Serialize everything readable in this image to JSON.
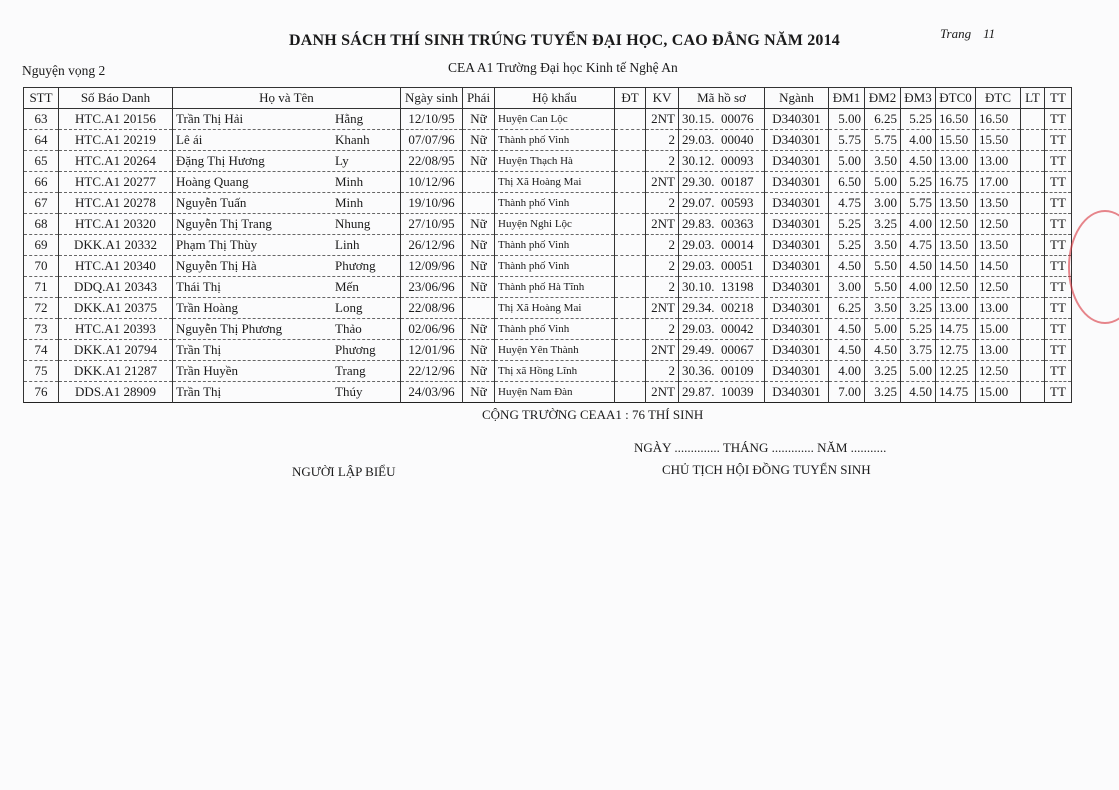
{
  "header": {
    "title": "DANH SÁCH THÍ SINH TRÚNG TUYỂN ĐẠI HỌC, CAO ĐẲNG NĂM 2014",
    "page_label": "Trang",
    "page_number": "11",
    "wish": "Nguyện vọng 2",
    "school": "CEA A1 Trường Đại học Kinh tế Nghệ An"
  },
  "table": {
    "columns": [
      "STT",
      "Số Báo Danh",
      "Họ và Tên",
      "Ngày sinh",
      "Phái",
      "Hộ khẩu",
      "ĐT",
      "KV",
      "Mã hồ sơ",
      "Ngành",
      "ĐM1",
      "ĐM2",
      "ĐM3",
      "ĐTC0",
      "ĐTC",
      "LT",
      "TT"
    ],
    "rows": [
      [
        "63",
        "HTC.A1 20156",
        "Trần Thị Hải",
        "Hằng",
        "12/10/95",
        "Nữ",
        "Huyện Can Lộc",
        "",
        "2NT",
        "30.15.  00076",
        "D340301",
        "5.00",
        "6.25",
        "5.25",
        "16.50",
        "16.50",
        "",
        "TT"
      ],
      [
        "64",
        "HTC.A1 20219",
        "Lê ái",
        "Khanh",
        "07/07/96",
        "Nữ",
        "Thành phố Vinh",
        "",
        "2",
        "29.03.  00040",
        "D340301",
        "5.75",
        "5.75",
        "4.00",
        "15.50",
        "15.50",
        "",
        "TT"
      ],
      [
        "65",
        "HTC.A1 20264",
        "Đặng Thị Hương",
        "Ly",
        "22/08/95",
        "Nữ",
        "Huyện Thạch Hà",
        "",
        "2",
        "30.12.  00093",
        "D340301",
        "5.00",
        "3.50",
        "4.50",
        "13.00",
        "13.00",
        "",
        "TT"
      ],
      [
        "66",
        "HTC.A1 20277",
        "Hoàng Quang",
        "Minh",
        "10/12/96",
        "",
        "Thị Xã Hoàng Mai",
        "",
        "2NT",
        "29.30.  00187",
        "D340301",
        "6.50",
        "5.00",
        "5.25",
        "16.75",
        "17.00",
        "",
        "TT"
      ],
      [
        "67",
        "HTC.A1 20278",
        "Nguyễn Tuấn",
        "Minh",
        "19/10/96",
        "",
        "Thành phố Vinh",
        "",
        "2",
        "29.07.  00593",
        "D340301",
        "4.75",
        "3.00",
        "5.75",
        "13.50",
        "13.50",
        "",
        "TT"
      ],
      [
        "68",
        "HTC.A1 20320",
        "Nguyễn Thị Trang",
        "Nhung",
        "27/10/95",
        "Nữ",
        "Huyện Nghi Lộc",
        "",
        "2NT",
        "29.83.  00363",
        "D340301",
        "5.25",
        "3.25",
        "4.00",
        "12.50",
        "12.50",
        "",
        "TT"
      ],
      [
        "69",
        "DKK.A1 20332",
        "Phạm Thị Thùy",
        "Linh",
        "26/12/96",
        "Nữ",
        "Thành phố Vinh",
        "",
        "2",
        "29.03.  00014",
        "D340301",
        "5.25",
        "3.50",
        "4.75",
        "13.50",
        "13.50",
        "",
        "TT"
      ],
      [
        "70",
        "HTC.A1 20340",
        "Nguyễn Thị Hà",
        "Phương",
        "12/09/96",
        "Nữ",
        "Thành phố Vinh",
        "",
        "2",
        "29.03.  00051",
        "D340301",
        "4.50",
        "5.50",
        "4.50",
        "14.50",
        "14.50",
        "",
        "TT"
      ],
      [
        "71",
        "DDQ.A1 20343",
        "Thái Thị",
        "Mến",
        "23/06/96",
        "Nữ",
        "Thành phố Hà Tĩnh",
        "",
        "2",
        "30.10.  13198",
        "D340301",
        "3.00",
        "5.50",
        "4.00",
        "12.50",
        "12.50",
        "",
        "TT"
      ],
      [
        "72",
        "DKK.A1 20375",
        "Trần Hoàng",
        "Long",
        "22/08/96",
        "",
        "Thị Xã Hoàng Mai",
        "",
        "2NT",
        "29.34.  00218",
        "D340301",
        "6.25",
        "3.50",
        "3.25",
        "13.00",
        "13.00",
        "",
        "TT"
      ],
      [
        "73",
        "HTC.A1 20393",
        "Nguyễn Thị Phương",
        "Thảo",
        "02/06/96",
        "Nữ",
        "Thành phố Vinh",
        "",
        "2",
        "29.03.  00042",
        "D340301",
        "4.50",
        "5.00",
        "5.25",
        "14.75",
        "15.00",
        "",
        "TT"
      ],
      [
        "74",
        "DKK.A1 20794",
        "Trần Thị",
        "Phương",
        "12/01/96",
        "Nữ",
        "Huyện Yên Thành",
        "",
        "2NT",
        "29.49.  00067",
        "D340301",
        "4.50",
        "4.50",
        "3.75",
        "12.75",
        "13.00",
        "",
        "TT"
      ],
      [
        "75",
        "DKK.A1 21287",
        "Trần Huyền",
        "Trang",
        "22/12/96",
        "Nữ",
        "Thị xã Hồng Lĩnh",
        "",
        "2",
        "30.36.  00109",
        "D340301",
        "4.00",
        "3.25",
        "5.00",
        "12.25",
        "12.50",
        "",
        "TT"
      ],
      [
        "76",
        "DDS.A1 28909",
        "Trần Thị",
        "Thúy",
        "24/03/96",
        "Nữ",
        "Huyện Nam Đàn",
        "",
        "2NT",
        "29.87.  10039",
        "D340301",
        "7.00",
        "3.25",
        "4.50",
        "14.75",
        "15.00",
        "",
        "TT"
      ]
    ]
  },
  "footer": {
    "total": "CỘNG TRƯỜNG CEAA1 : 76 THÍ SINH",
    "date_line": "NGÀY .............. THÁNG ............. NĂM ...........",
    "preparer": "NGƯỜI LẬP BIỂU",
    "chairman": "CHỦ TỊCH HỘI ĐỒNG TUYỂN SINH"
  },
  "colors": {
    "ink": "#1a1a1a",
    "stamp": "#d9363e"
  }
}
